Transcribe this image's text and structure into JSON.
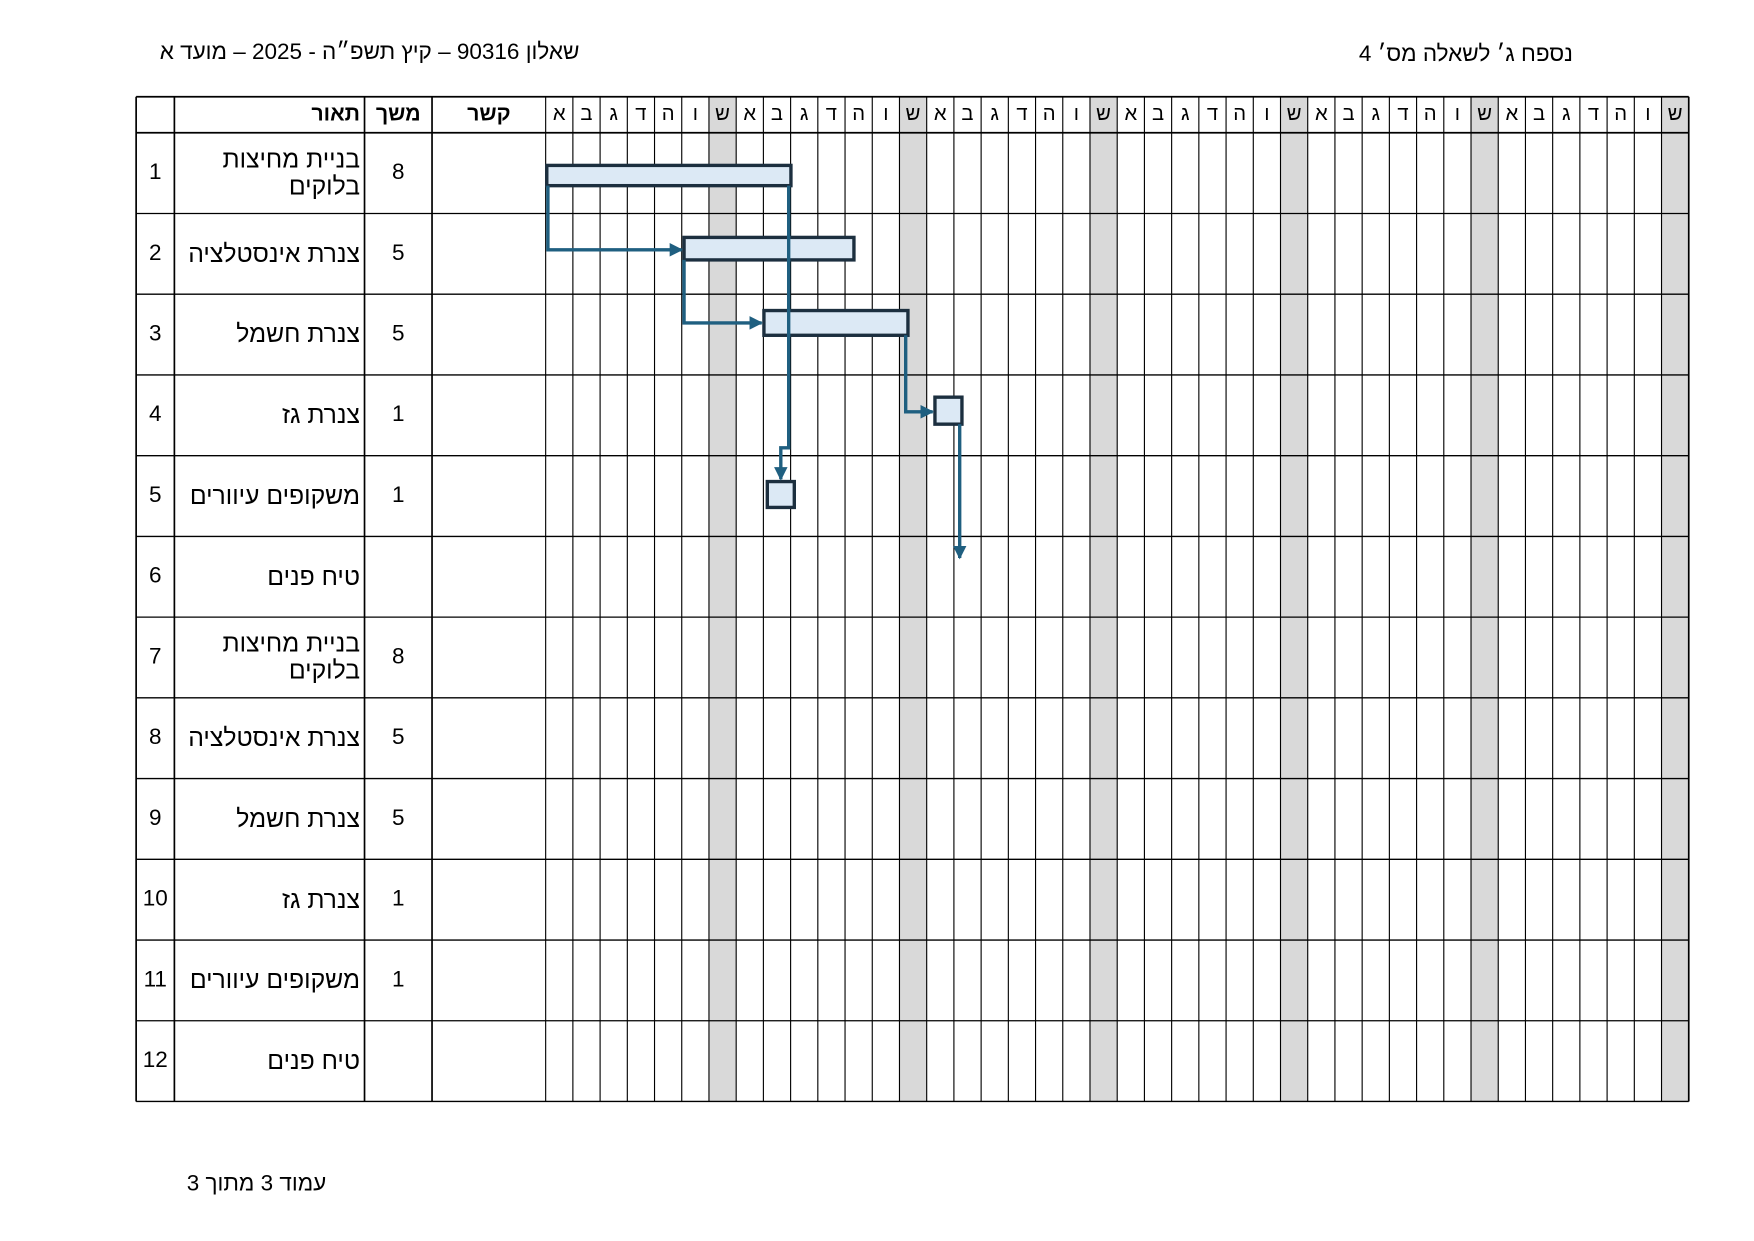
{
  "header": {
    "left": "שאלון 90316 – קיץ תשפ״ה - 2025 – מועד א",
    "right": "נספח ג׳ לשאלה מס׳ 4"
  },
  "table": {
    "columns": {
      "description": "תאור",
      "duration": "משך",
      "link": "קשר"
    },
    "days": [
      "א",
      "ב",
      "ג",
      "ד",
      "ה",
      "ו",
      "ש",
      "א",
      "ב",
      "ג",
      "ד",
      "ה",
      "ו",
      "ש",
      "א",
      "ב",
      "ג",
      "ד",
      "ה",
      "ו",
      "ש",
      "א",
      "ב",
      "ג",
      "ד",
      "ה",
      "ו",
      "ש",
      "א",
      "ב",
      "ג",
      "ד",
      "ה",
      "ו",
      "ש",
      "א",
      "ב",
      "ג",
      "ד",
      "ה",
      "ו",
      "ש"
    ],
    "rows": [
      {
        "number": 1,
        "description": "בניית מחיצות בלוקים",
        "duration": 8
      },
      {
        "number": 2,
        "description": "צנרת אינסטלציה",
        "duration": 5
      },
      {
        "number": 3,
        "description": "צנרת חשמל",
        "duration": 5
      },
      {
        "number": 4,
        "description": "צנרת גז",
        "duration": 1
      },
      {
        "number": 5,
        "description": "משקופים עיוורים",
        "duration": 1
      },
      {
        "number": 6,
        "description": "טיח פנים"
      },
      {
        "number": 7,
        "description": "בניית מחיצות בלוקים",
        "duration": 8
      },
      {
        "number": 8,
        "description": "צנרת אינסטלציה",
        "duration": 5
      },
      {
        "number": 9,
        "description": "צנרת חשמל",
        "duration": 5
      },
      {
        "number": 10,
        "description": "צנרת גז",
        "duration": 1
      },
      {
        "number": 11,
        "description": "משקופים עיוורים",
        "duration": 1
      },
      {
        "number": 12,
        "description": "טיח פנים"
      }
    ]
  },
  "footer": "עמוד 3 מתוך 3"
}
